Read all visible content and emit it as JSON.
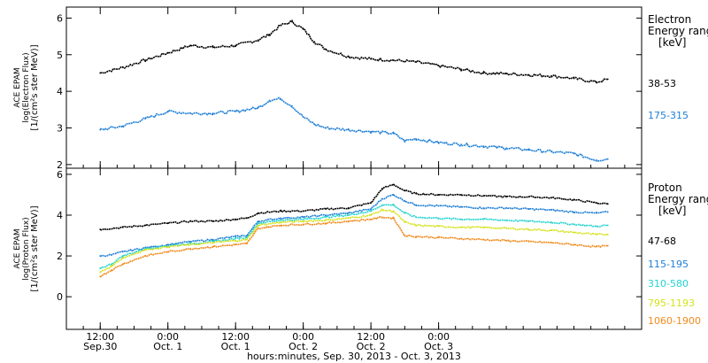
{
  "chart_data": [
    {
      "type": "line",
      "panel": "electron",
      "ylabel_lines": [
        "ACE EPAM",
        "log(Electron Flux)",
        "[1/(cm²s ster MeV)]"
      ],
      "ylim": [
        1.9,
        6.3
      ],
      "yticks": [
        2,
        3,
        4,
        5,
        6
      ],
      "legend_title": [
        "Electron",
        "Energy range",
        "[keV]"
      ],
      "series": [
        {
          "name": "38-53",
          "color": "#000000",
          "x": [
            0,
            4,
            8,
            12,
            16,
            20,
            24,
            28,
            30,
            32,
            34,
            36,
            38,
            40,
            44,
            48,
            52,
            56,
            60,
            64,
            68,
            72,
            76,
            80,
            84,
            88,
            90
          ],
          "y": [
            4.5,
            4.65,
            4.85,
            5.05,
            5.25,
            5.2,
            5.25,
            5.4,
            5.55,
            5.8,
            5.9,
            5.7,
            5.35,
            5.15,
            4.95,
            4.88,
            4.85,
            4.8,
            4.7,
            4.6,
            4.5,
            4.48,
            4.45,
            4.42,
            4.35,
            4.25,
            4.33
          ]
        },
        {
          "name": "175-315",
          "color": "#1f7fd6",
          "x": [
            0,
            4,
            8,
            12,
            16,
            20,
            24,
            28,
            30,
            32,
            34,
            36,
            38,
            40,
            44,
            48,
            52,
            54,
            56,
            60,
            64,
            68,
            72,
            76,
            80,
            84,
            88,
            90
          ],
          "y": [
            2.95,
            3.05,
            3.25,
            3.45,
            3.4,
            3.4,
            3.45,
            3.55,
            3.75,
            3.8,
            3.6,
            3.3,
            3.1,
            3.0,
            2.95,
            2.9,
            2.85,
            2.65,
            2.7,
            2.6,
            2.55,
            2.5,
            2.45,
            2.4,
            2.35,
            2.3,
            2.12,
            2.15
          ]
        }
      ]
    },
    {
      "type": "line",
      "panel": "proton",
      "ylabel_lines": [
        "ACE EPAM",
        "log(Proton Flux)",
        "[1/(cm²s ster MeV)]"
      ],
      "ylim": [
        -1.6,
        6.3
      ],
      "yticks": [
        0,
        2,
        4,
        6
      ],
      "legend_title": [
        "Proton",
        "Energy range",
        "[keV]"
      ],
      "series": [
        {
          "name": "47-68",
          "color": "#000000",
          "x": [
            0,
            4,
            8,
            12,
            16,
            20,
            24,
            26,
            28,
            32,
            36,
            40,
            44,
            48,
            50,
            52,
            54,
            56,
            60,
            64,
            68,
            72,
            76,
            80,
            84,
            88,
            90
          ],
          "y": [
            3.3,
            3.4,
            3.5,
            3.6,
            3.7,
            3.7,
            3.8,
            3.85,
            4.1,
            4.2,
            4.2,
            4.3,
            4.35,
            4.6,
            5.3,
            5.5,
            5.2,
            5.05,
            5.0,
            5.0,
            4.95,
            4.9,
            4.9,
            4.85,
            4.75,
            4.6,
            4.55
          ]
        },
        {
          "name": "115-195",
          "color": "#1f7fd6",
          "x": [
            0,
            2,
            4,
            8,
            12,
            16,
            20,
            24,
            26,
            28,
            32,
            36,
            40,
            44,
            48,
            50,
            52,
            54,
            56,
            60,
            64,
            68,
            72,
            76,
            80,
            84,
            88,
            90
          ],
          "y": [
            2.0,
            2.05,
            2.2,
            2.4,
            2.55,
            2.7,
            2.8,
            2.95,
            3.0,
            3.7,
            3.85,
            3.9,
            4.0,
            4.1,
            4.3,
            4.8,
            5.0,
            4.7,
            4.5,
            4.45,
            4.4,
            4.35,
            4.35,
            4.3,
            4.25,
            4.15,
            4.1,
            4.15
          ]
        },
        {
          "name": "310-580",
          "color": "#22d3cf",
          "x": [
            0,
            2,
            4,
            8,
            12,
            16,
            20,
            24,
            26,
            28,
            32,
            36,
            40,
            44,
            48,
            50,
            52,
            54,
            56,
            60,
            64,
            68,
            72,
            76,
            80,
            84,
            88,
            90
          ],
          "y": [
            1.4,
            1.6,
            2.0,
            2.35,
            2.5,
            2.6,
            2.7,
            2.85,
            2.9,
            3.6,
            3.75,
            3.8,
            3.9,
            4.0,
            4.2,
            4.5,
            4.5,
            4.1,
            3.9,
            3.85,
            3.8,
            3.8,
            3.75,
            3.7,
            3.65,
            3.55,
            3.45,
            3.5
          ]
        },
        {
          "name": "795-1193",
          "color": "#d4e21a",
          "x": [
            0,
            2,
            4,
            8,
            12,
            16,
            20,
            24,
            26,
            28,
            32,
            36,
            40,
            44,
            48,
            50,
            52,
            54,
            56,
            60,
            64,
            68,
            72,
            76,
            80,
            84,
            88,
            90
          ],
          "y": [
            1.2,
            1.5,
            1.9,
            2.3,
            2.45,
            2.55,
            2.65,
            2.75,
            2.8,
            3.5,
            3.65,
            3.7,
            3.75,
            3.85,
            4.0,
            4.25,
            4.2,
            3.65,
            3.5,
            3.45,
            3.4,
            3.4,
            3.35,
            3.3,
            3.25,
            3.15,
            3.05,
            3.05
          ]
        },
        {
          "name": "1060-1900",
          "color": "#f08a1c",
          "x": [
            0,
            2,
            4,
            8,
            12,
            16,
            20,
            24,
            26,
            28,
            32,
            36,
            40,
            44,
            48,
            50,
            52,
            54,
            56,
            60,
            64,
            68,
            72,
            76,
            80,
            84,
            88,
            90
          ],
          "y": [
            1.0,
            1.3,
            1.6,
            2.0,
            2.2,
            2.35,
            2.45,
            2.55,
            2.6,
            3.35,
            3.5,
            3.55,
            3.6,
            3.7,
            3.8,
            3.9,
            3.85,
            3.0,
            2.95,
            2.9,
            2.85,
            2.8,
            2.75,
            2.7,
            2.65,
            2.55,
            2.45,
            2.5
          ]
        }
      ]
    }
  ],
  "x_axis": {
    "range": [
      -6,
      96
    ],
    "ticks": [
      {
        "x": 0,
        "line1": "12:00",
        "line2": "Sep.30"
      },
      {
        "x": 12,
        "line1": "0:00",
        "line2": "Oct. 1"
      },
      {
        "x": 24,
        "line1": "12:00",
        "line2": "Oct. 1"
      },
      {
        "x": 36,
        "line1": "0:00",
        "line2": "Oct. 2"
      },
      {
        "x": 48,
        "line1": "12:00",
        "line2": "Oct. 2"
      },
      {
        "x": 60,
        "line1": "0:00",
        "line2": "Oct. 3"
      }
    ],
    "xlabel": "hours:minutes, Sep. 30, 2013 - Oct.  3, 2013"
  },
  "colors": {
    "axis": "#000000",
    "background": "#ffffff"
  }
}
